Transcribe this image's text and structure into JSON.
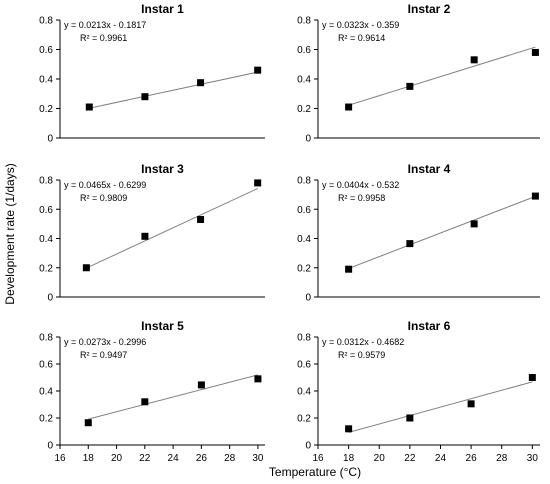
{
  "figure": {
    "ylabel": "Development rate (1/days)",
    "xlabel": "Temperature (°C)"
  },
  "chart_data": [
    {
      "type": "scatter",
      "title": "Instar 1",
      "equation": "y = 0.0213x - 0.1817",
      "r2": "R² = 0.9961",
      "x": [
        18,
        21.8,
        25.6,
        29.5
      ],
      "y": [
        0.21,
        0.28,
        0.375,
        0.46
      ],
      "trend": {
        "slope": 0.0213,
        "intercept": -0.1817,
        "x_range": [
          18,
          29.5
        ]
      },
      "ylim": [
        0,
        0.8
      ],
      "yticks": [
        "0",
        "0.2",
        "0.4",
        "0.6",
        "0.8"
      ],
      "xlim": [
        16,
        30
      ],
      "xticks": [],
      "grid": false
    },
    {
      "type": "scatter",
      "title": "Instar 2",
      "equation": "y = 0.0323x - 0.359",
      "r2": "R² = 0.9614",
      "x": [
        18,
        22,
        26.2,
        30.2
      ],
      "y": [
        0.21,
        0.35,
        0.53,
        0.58
      ],
      "trend": {
        "slope": 0.0323,
        "intercept": -0.359,
        "x_range": [
          18,
          30.2
        ]
      },
      "ylim": [
        0,
        0.8
      ],
      "yticks": [
        "0",
        "0.2",
        "0.4",
        "0.6",
        "0.8"
      ],
      "xlim": [
        16,
        30.5
      ],
      "xticks": [],
      "grid": false
    },
    {
      "type": "scatter",
      "title": "Instar 3",
      "equation": "y = 0.0465x - 0.6299",
      "r2": "R² = 0.9809",
      "x": [
        17.8,
        21.8,
        25.6,
        29.5
      ],
      "y": [
        0.2,
        0.415,
        0.53,
        0.78
      ],
      "trend": {
        "slope": 0.0465,
        "intercept": -0.6299,
        "x_range": [
          17.8,
          29.5
        ]
      },
      "ylim": [
        0,
        0.8
      ],
      "yticks": [
        "0",
        "0.2",
        "0.4",
        "0.6",
        "0.8"
      ],
      "xlim": [
        16,
        30
      ],
      "xticks": [],
      "grid": false
    },
    {
      "type": "scatter",
      "title": "Instar 4",
      "equation": "y = 0.0404x - 0.532",
      "r2": "R² = 0.9958",
      "x": [
        18,
        22,
        26.2,
        30.2
      ],
      "y": [
        0.19,
        0.365,
        0.5,
        0.69
      ],
      "trend": {
        "slope": 0.0404,
        "intercept": -0.532,
        "x_range": [
          18,
          30.2
        ]
      },
      "ylim": [
        0,
        0.8
      ],
      "yticks": [
        "0",
        "0.2",
        "0.4",
        "0.6",
        "0.8"
      ],
      "xlim": [
        16,
        30.5
      ],
      "xticks": [],
      "grid": false
    },
    {
      "type": "scatter",
      "title": "Instar 5",
      "equation": "y = 0.0273x - 0.2996",
      "r2": "R² = 0.9497",
      "x": [
        18,
        22,
        26,
        30
      ],
      "y": [
        0.165,
        0.32,
        0.445,
        0.49
      ],
      "trend": {
        "slope": 0.0273,
        "intercept": -0.2996,
        "x_range": [
          18,
          30
        ]
      },
      "ylim": [
        0,
        0.8
      ],
      "yticks": [
        "0",
        "0.2",
        "0.4",
        "0.6",
        "0.8"
      ],
      "xlim": [
        16,
        30.5
      ],
      "xticks": [
        "16",
        "18",
        "20",
        "22",
        "24",
        "26",
        "28",
        "30"
      ],
      "grid": false
    },
    {
      "type": "scatter",
      "title": "Instar 6",
      "equation": "y = 0.0312x - 0.4682",
      "r2": "R² = 0.9579",
      "x": [
        18,
        22,
        26,
        30
      ],
      "y": [
        0.12,
        0.2,
        0.305,
        0.5
      ],
      "trend": {
        "slope": 0.0312,
        "intercept": -0.4682,
        "x_range": [
          18,
          30
        ]
      },
      "ylim": [
        0,
        0.8
      ],
      "yticks": [
        "0",
        "0.2",
        "0.4",
        "0.6",
        "0.8"
      ],
      "xlim": [
        16,
        30.5
      ],
      "xticks": [
        "16",
        "18",
        "20",
        "22",
        "24",
        "26",
        "28",
        "30"
      ],
      "grid": false
    }
  ]
}
